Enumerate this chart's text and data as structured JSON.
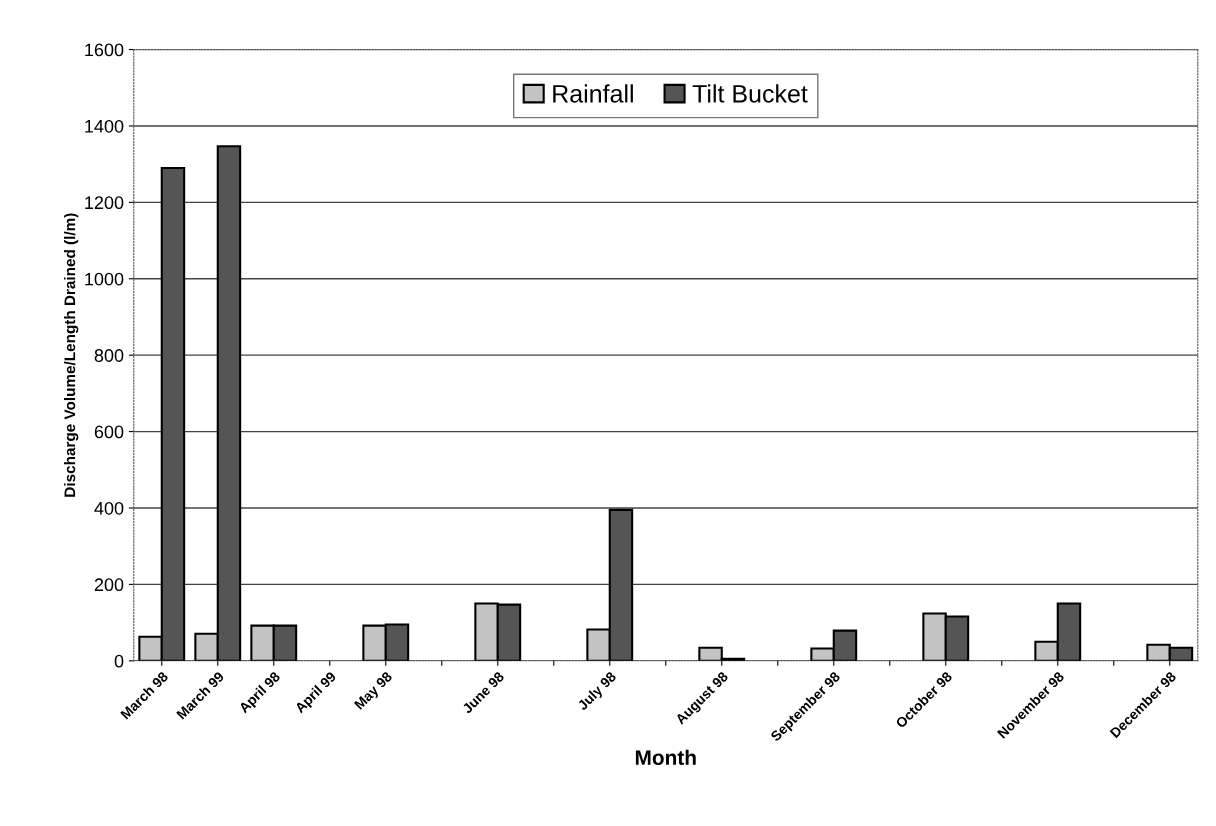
{
  "chart_data": {
    "type": "bar",
    "xlabel": "Month",
    "ylabel": "Discharge Volume/Length Drained (l/m)",
    "categories": [
      "March 98",
      "March 99",
      "April 98",
      "April 99",
      "May 98",
      null,
      "June 98",
      null,
      "July 98",
      null,
      "August 98",
      null,
      "September 98",
      null,
      "October 98",
      null,
      "November 98",
      null,
      "December 98"
    ],
    "series": [
      {
        "name": "Rainfall",
        "color": "#c4c4c4",
        "values": [
          63,
          71,
          92,
          null,
          92,
          null,
          150,
          null,
          82,
          null,
          34,
          null,
          32,
          null,
          124,
          null,
          50,
          null,
          42
        ]
      },
      {
        "name": "Tilt Bucket",
        "color": "#555555",
        "values": [
          1290,
          1347,
          92,
          null,
          95,
          null,
          147,
          null,
          395,
          null,
          5,
          null,
          79,
          null,
          116,
          null,
          150,
          null,
          34
        ]
      }
    ],
    "ylim": [
      0,
      1600
    ],
    "yticks": [
      0,
      200,
      400,
      600,
      800,
      1000,
      1200,
      1400,
      1600
    ],
    "grid": "y",
    "legend": "top"
  }
}
